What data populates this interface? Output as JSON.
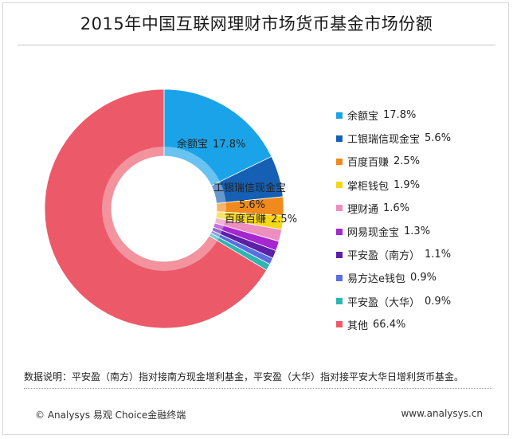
{
  "title": "2015年中国互联网理财市场货币基金市场份额",
  "chart_data": {
    "type": "pie",
    "variant": "donut",
    "title": "2015年中国互联网理财市场货币基金市场份额",
    "legend_position": "right",
    "unit": "%",
    "slices": [
      {
        "name": "余额宝",
        "label": "17.8%",
        "value": 17.8,
        "color": "#1aa3e8"
      },
      {
        "name": "工银瑞信现金宝",
        "label": "5.6%",
        "value": 5.6,
        "color": "#1560b5"
      },
      {
        "name": "百度百赚",
        "label": "2.5%",
        "value": 2.5,
        "color": "#f08a1c"
      },
      {
        "name": "掌柜钱包",
        "label": "1.9%",
        "value": 1.9,
        "color": "#f6d618"
      },
      {
        "name": "理财通",
        "label": "1.6%",
        "value": 1.6,
        "color": "#ec8ec0"
      },
      {
        "name": "网易现金宝",
        "label": "1.3%",
        "value": 1.3,
        "color": "#a626cf"
      },
      {
        "name": "平安盈（南方）",
        "label": "1.1%",
        "value": 1.1,
        "color": "#5b1fa8"
      },
      {
        "name": "易方达e钱包",
        "label": "0.9%",
        "value": 0.9,
        "color": "#5b6fe0"
      },
      {
        "name": "平安盈（大华）",
        "label": "0.9%",
        "value": 0.9,
        "color": "#2fb5b0"
      },
      {
        "name": "其他",
        "label": "66.4%",
        "value": 66.4,
        "color": "#ec5a6a"
      }
    ],
    "slice_labels": [
      {
        "name": "余额宝",
        "value": "17.8%"
      },
      {
        "name": "工银瑞信现金宝",
        "value": "5.6%"
      },
      {
        "name": "百度百赚",
        "value": "2.5%"
      }
    ]
  },
  "note": "数据说明：平安盈（南方）指对接南方现金增利基金，平安盈（大华）指对接平安大华日增利货币基金。",
  "footer": {
    "left": "© Analysys 易观  Choice金融终端",
    "right": "www.analysys.cn"
  }
}
